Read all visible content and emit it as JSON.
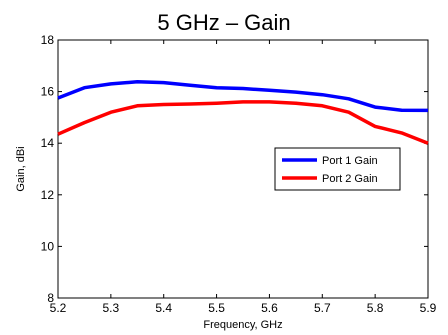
{
  "chart_data": {
    "type": "line",
    "title": "5 GHz – Gain",
    "xlabel": "Frequency, GHz",
    "ylabel": "Gain, dBi",
    "xlim": [
      5.2,
      5.9
    ],
    "ylim": [
      8,
      18
    ],
    "xticks": [
      "5.2",
      "5.3",
      "5.4",
      "5.5",
      "5.6",
      "5.7",
      "5.8",
      "5.9"
    ],
    "yticks": [
      "8",
      "10",
      "12",
      "14",
      "16",
      "18"
    ],
    "grid": false,
    "legend_position": "center-right",
    "series": [
      {
        "name": "Port 1 Gain",
        "color": "#0000ff",
        "x": [
          5.2,
          5.25,
          5.3,
          5.35,
          5.4,
          5.45,
          5.5,
          5.55,
          5.6,
          5.65,
          5.7,
          5.75,
          5.8,
          5.85,
          5.9
        ],
        "y": [
          15.75,
          16.15,
          16.3,
          16.38,
          16.35,
          16.25,
          16.15,
          16.12,
          16.05,
          15.98,
          15.88,
          15.72,
          15.4,
          15.28,
          15.27
        ]
      },
      {
        "name": "Port 2 Gain",
        "color": "#ff0000",
        "x": [
          5.2,
          5.25,
          5.3,
          5.35,
          5.4,
          5.45,
          5.5,
          5.55,
          5.6,
          5.65,
          5.7,
          5.75,
          5.8,
          5.85,
          5.9
        ],
        "y": [
          14.35,
          14.8,
          15.2,
          15.45,
          15.5,
          15.52,
          15.55,
          15.6,
          15.6,
          15.55,
          15.45,
          15.2,
          14.65,
          14.4,
          14.0
        ]
      }
    ]
  }
}
